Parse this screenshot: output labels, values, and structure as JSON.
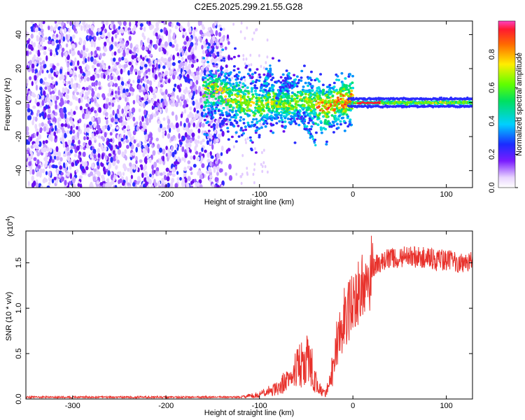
{
  "title": "C2E5.2025.299.21.55.G28",
  "colors": {
    "snr_line": "#e8322c",
    "frame": "#000000",
    "spectro_cool": "#6a00ff",
    "spectro_hot": "#ff2020"
  },
  "spectrogram": {
    "type": "heatmap",
    "xlabel": "Height of straight line (km)",
    "ylabel": "Frequency (Hz)",
    "xlim": [
      -350,
      128
    ],
    "ylim": [
      -50,
      48
    ],
    "xticks": [
      -300,
      -200,
      -100,
      0,
      100
    ],
    "yticks": [
      -40,
      -20,
      0,
      20,
      40
    ],
    "colorbar": {
      "label": "Normalized spectral amplitude",
      "range": [
        0,
        1
      ],
      "ticks": [
        "0.0",
        "0.2",
        "0.4",
        "0.6",
        "0.8"
      ],
      "tick_values": [
        0.0,
        0.2,
        0.4,
        0.6,
        0.8
      ]
    }
  },
  "snr": {
    "type": "line",
    "xlabel": "Height of straight line (km)",
    "ylabel": "SNR (10 * v/v)",
    "scale_label": "(x10",
    "scale_exp": "4",
    "scale_close": ")",
    "xlim": [
      -350,
      128
    ],
    "ylim": [
      0,
      1.85
    ],
    "xticks": [
      -300,
      -200,
      -100,
      0,
      100
    ],
    "yticks": [
      "0.0",
      "0.5",
      "1.0",
      "1.5"
    ],
    "ytick_values": [
      0.0,
      0.5,
      1.0,
      1.5
    ],
    "trend_x": [
      -350,
      -120,
      -100,
      -80,
      -70,
      -60,
      -50,
      -45,
      -40,
      -35,
      -30,
      -25,
      -20,
      -15,
      -10,
      -5,
      0,
      5,
      10,
      15,
      20,
      25,
      30,
      40,
      60,
      80,
      100,
      128
    ],
    "trend_y": [
      0.02,
      0.02,
      0.05,
      0.12,
      0.22,
      0.35,
      0.45,
      0.4,
      0.2,
      0.1,
      0.06,
      0.15,
      0.4,
      0.75,
      0.9,
      0.95,
      1.05,
      1.15,
      1.25,
      1.35,
      1.42,
      1.48,
      1.5,
      1.55,
      1.57,
      1.55,
      1.52,
      1.5
    ]
  }
}
